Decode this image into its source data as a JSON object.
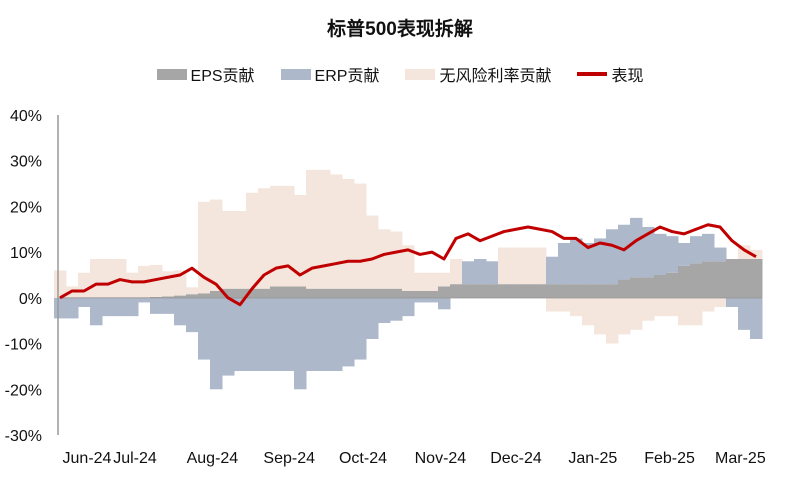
{
  "chart_data": {
    "type": "bar",
    "title": "标普500表现拆解",
    "xlabel": "",
    "ylabel": "",
    "ylim": [
      -30,
      40
    ],
    "yticks": [
      "40%",
      "30%",
      "20%",
      "10%",
      "0%",
      "-10%",
      "-20%",
      "-30%"
    ],
    "ytick_values": [
      40,
      30,
      20,
      10,
      0,
      -10,
      -20,
      -30
    ],
    "xtick_labels": [
      "Jun-24",
      "Jul-24",
      "Aug-24",
      "Sep-24",
      "Oct-24",
      "Nov-24",
      "Dec-24",
      "Jan-25",
      "Feb-25",
      "Mar-25"
    ],
    "xtick_index": [
      2.25,
      6.25,
      12.7,
      19.1,
      25.25,
      31.7,
      38,
      44.4,
      50.8,
      56.7
    ],
    "legend_position": "top",
    "series": [
      {
        "name": "EPS贡献",
        "kind": "bar",
        "color": "#a6a6a6",
        "values": [
          0,
          0,
          0,
          0,
          0,
          0,
          0,
          0,
          0.2,
          0.3,
          0.5,
          0.8,
          1,
          1.5,
          2,
          2,
          2,
          2,
          2.5,
          2.5,
          2.5,
          2,
          2,
          2,
          2,
          2,
          2,
          2,
          2,
          1.5,
          1.5,
          1.5,
          2.5,
          3,
          3,
          3,
          3,
          3,
          3,
          3,
          3,
          3,
          3,
          3,
          3,
          3,
          3,
          4,
          4.5,
          4.5,
          5,
          5.5,
          7,
          7.5,
          8,
          8,
          8.5,
          8.5,
          8.5
        ]
      },
      {
        "name": "ERP贡献",
        "kind": "bar",
        "color": "#adb9ca",
        "values": [
          -4.5,
          -4.5,
          -2,
          -6,
          -4,
          -4,
          -4,
          -1,
          -3.5,
          -3.5,
          -6,
          -7.5,
          -13.5,
          -20,
          -17,
          -16,
          -16,
          -16,
          -16,
          -16,
          -20,
          -16,
          -16,
          -16,
          -15,
          -13.5,
          -9,
          -5.5,
          -5,
          -4,
          -1,
          -1,
          -2.5,
          0,
          5,
          5.5,
          5,
          0,
          0,
          0,
          0,
          6,
          9,
          10,
          9,
          10,
          12,
          12,
          13,
          11,
          9,
          8,
          5,
          6,
          6,
          3,
          -2,
          -7,
          -9
        ]
      },
      {
        "name": "无风险利率贡献",
        "kind": "bar",
        "color": "#f4e6dc",
        "values": [
          6,
          2.5,
          5.5,
          8.5,
          8.5,
          8.5,
          5.5,
          7,
          7,
          5.5,
          5.5,
          1.5,
          20,
          20,
          17,
          17,
          21,
          22,
          22,
          22,
          20,
          26,
          26,
          25,
          24,
          23,
          16,
          13,
          12.5,
          10,
          4,
          4,
          3,
          5.5,
          0,
          0,
          0,
          8,
          8,
          8,
          8,
          -3,
          -3,
          -4,
          -6,
          -8,
          -10,
          -8,
          -7,
          -5,
          -4,
          -4,
          -6,
          -6,
          -3,
          -2,
          0,
          3,
          2
        ]
      },
      {
        "name": "表现",
        "kind": "line",
        "color": "#c00000",
        "values": [
          0,
          1.5,
          1.5,
          3,
          3,
          4,
          3.5,
          3.5,
          4,
          4.5,
          5,
          6.5,
          4.5,
          3,
          0,
          -1.5,
          2,
          5,
          6.5,
          7,
          5,
          6.5,
          7,
          7.5,
          8,
          8,
          8.5,
          9.5,
          10,
          10.5,
          9.5,
          10,
          8.5,
          13,
          14,
          12.5,
          13.5,
          14.5,
          15,
          15.5,
          15,
          14.5,
          13,
          13,
          11,
          12,
          11.5,
          10.5,
          12.5,
          14,
          15.5,
          14.5,
          14,
          15,
          16,
          15.5,
          12.5,
          10.5,
          9
        ]
      }
    ]
  }
}
